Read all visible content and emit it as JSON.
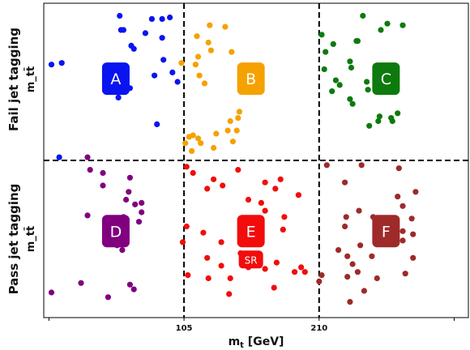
{
  "chart_data": {
    "type": "scatter",
    "xlabel": "m_t [GeV]",
    "xticks": [
      105,
      210
    ],
    "xlim": [
      -4,
      326
    ],
    "ylim": [
      0,
      1
    ],
    "grid": false,
    "row_labels": [
      {
        "main": "Fail jet tagging",
        "sub": "m_tt̄"
      },
      {
        "main": "Pass jet tagging",
        "sub": "m_tt̄"
      }
    ],
    "dividers": {
      "x": [
        105,
        210
      ],
      "y": [
        0.5
      ]
    },
    "regions": [
      {
        "label": "A",
        "color": "#0a14f0",
        "cx": 52,
        "cy": 0.76
      },
      {
        "label": "B",
        "color": "#f5a100",
        "cx": 157,
        "cy": 0.76
      },
      {
        "label": "C",
        "color": "#0d7a0d",
        "cx": 262,
        "cy": 0.76
      },
      {
        "label": "D",
        "color": "#800080",
        "cx": 52,
        "cy": 0.275
      },
      {
        "label": "E",
        "color": "#f20c0c",
        "cx": 157,
        "cy": 0.275,
        "sublabel": "SR"
      },
      {
        "label": "F",
        "color": "#9e2a2a",
        "cx": 262,
        "cy": 0.275
      }
    ],
    "series": [
      {
        "color": "#0a14f0",
        "points": [
          [
            55,
            0.96
          ],
          [
            80,
            0.95
          ],
          [
            88,
            0.95
          ],
          [
            94,
            0.955
          ],
          [
            56,
            0.915
          ],
          [
            58,
            0.915
          ],
          [
            75,
            0.905
          ],
          [
            88,
            0.89
          ],
          [
            64,
            0.865
          ],
          [
            66,
            0.855
          ],
          [
            89,
            0.82
          ],
          [
            2,
            0.805
          ],
          [
            10,
            0.81
          ],
          [
            96,
            0.78
          ],
          [
            100,
            0.75
          ],
          [
            82,
            0.77
          ],
          [
            54,
            0.7
          ],
          [
            63,
            0.73
          ],
          [
            84,
            0.615
          ],
          [
            8,
            0.51
          ]
        ]
      },
      {
        "color": "#f5a100",
        "points": [
          [
            125,
            0.93
          ],
          [
            137,
            0.925
          ],
          [
            115,
            0.895
          ],
          [
            124,
            0.875
          ],
          [
            126,
            0.85
          ],
          [
            116,
            0.83
          ],
          [
            142,
            0.845
          ],
          [
            103,
            0.81
          ],
          [
            114,
            0.805
          ],
          [
            117,
            0.77
          ],
          [
            121,
            0.745
          ],
          [
            148,
            0.655
          ],
          [
            147,
            0.635
          ],
          [
            141,
            0.625
          ],
          [
            139,
            0.595
          ],
          [
            146,
            0.595
          ],
          [
            130,
            0.585
          ],
          [
            109,
            0.575
          ],
          [
            112,
            0.58
          ],
          [
            116,
            0.57
          ],
          [
            106,
            0.555
          ],
          [
            118,
            0.555
          ],
          [
            143,
            0.56
          ],
          [
            128,
            0.54
          ],
          [
            111,
            0.53
          ]
        ]
      },
      {
        "color": "#0d7a0d",
        "points": [
          [
            244,
            0.96
          ],
          [
            263,
            0.935
          ],
          [
            275,
            0.93
          ],
          [
            258,
            0.915
          ],
          [
            240,
            0.88
          ],
          [
            212,
            0.9
          ],
          [
            221,
            0.87
          ],
          [
            239,
            0.88
          ],
          [
            215,
            0.845
          ],
          [
            234,
            0.815
          ],
          [
            214,
            0.79
          ],
          [
            235,
            0.795
          ],
          [
            223,
            0.755
          ],
          [
            247,
            0.75
          ],
          [
            226,
            0.74
          ],
          [
            248,
            0.725
          ],
          [
            220,
            0.72
          ],
          [
            234,
            0.695
          ],
          [
            236,
            0.68
          ],
          [
            271,
            0.65
          ],
          [
            257,
            0.64
          ],
          [
            266,
            0.635
          ],
          [
            267,
            0.625
          ],
          [
            256,
            0.625
          ],
          [
            249,
            0.61
          ]
        ]
      },
      {
        "color": "#800080",
        "points": [
          [
            30,
            0.51
          ],
          [
            32,
            0.47
          ],
          [
            42,
            0.46
          ],
          [
            42,
            0.42
          ],
          [
            63,
            0.445
          ],
          [
            62,
            0.4
          ],
          [
            60,
            0.375
          ],
          [
            67,
            0.36
          ],
          [
            72,
            0.365
          ],
          [
            72,
            0.335
          ],
          [
            30,
            0.325
          ],
          [
            58,
            0.32
          ],
          [
            70,
            0.305
          ],
          [
            53,
            0.23
          ],
          [
            57,
            0.215
          ],
          [
            25,
            0.11
          ],
          [
            63,
            0.105
          ],
          [
            66,
            0.09
          ],
          [
            2,
            0.08
          ],
          [
            46,
            0.065
          ]
        ]
      },
      {
        "color": "#f20c0c",
        "points": [
          [
            107,
            0.48
          ],
          [
            112,
            0.46
          ],
          [
            147,
            0.47
          ],
          [
            128,
            0.44
          ],
          [
            135,
            0.42
          ],
          [
            123,
            0.41
          ],
          [
            168,
            0.43
          ],
          [
            180,
            0.44
          ],
          [
            176,
            0.41
          ],
          [
            194,
            0.39
          ],
          [
            155,
            0.375
          ],
          [
            165,
            0.365
          ],
          [
            168,
            0.34
          ],
          [
            183,
            0.32
          ],
          [
            182,
            0.28
          ],
          [
            107,
            0.29
          ],
          [
            120,
            0.27
          ],
          [
            151,
            0.285
          ],
          [
            134,
            0.24
          ],
          [
            104,
            0.24
          ],
          [
            149,
            0.205
          ],
          [
            123,
            0.19
          ],
          [
            177,
            0.175
          ],
          [
            134,
            0.165
          ],
          [
            155,
            0.16
          ],
          [
            168,
            0.155
          ],
          [
            196,
            0.16
          ],
          [
            191,
            0.145
          ],
          [
            199,
            0.145
          ],
          [
            108,
            0.135
          ],
          [
            124,
            0.125
          ],
          [
            141,
            0.125
          ],
          [
            175,
            0.095
          ],
          [
            140,
            0.075
          ]
        ]
      },
      {
        "color": "#9e2a2a",
        "points": [
          [
            216,
            0.485
          ],
          [
            243,
            0.485
          ],
          [
            272,
            0.475
          ],
          [
            230,
            0.43
          ],
          [
            271,
            0.385
          ],
          [
            285,
            0.4
          ],
          [
            275,
            0.355
          ],
          [
            241,
            0.34
          ],
          [
            231,
            0.32
          ],
          [
            252,
            0.32
          ],
          [
            282,
            0.315
          ],
          [
            230,
            0.29
          ],
          [
            275,
            0.275
          ],
          [
            283,
            0.265
          ],
          [
            275,
            0.245
          ],
          [
            242,
            0.23
          ],
          [
            225,
            0.215
          ],
          [
            232,
            0.195
          ],
          [
            251,
            0.195
          ],
          [
            283,
            0.19
          ],
          [
            236,
            0.17
          ],
          [
            240,
            0.145
          ],
          [
            277,
            0.14
          ],
          [
            232,
            0.13
          ],
          [
            255,
            0.125
          ],
          [
            212,
            0.135
          ],
          [
            210,
            0.115
          ],
          [
            245,
            0.085
          ],
          [
            234,
            0.05
          ]
        ]
      }
    ]
  }
}
